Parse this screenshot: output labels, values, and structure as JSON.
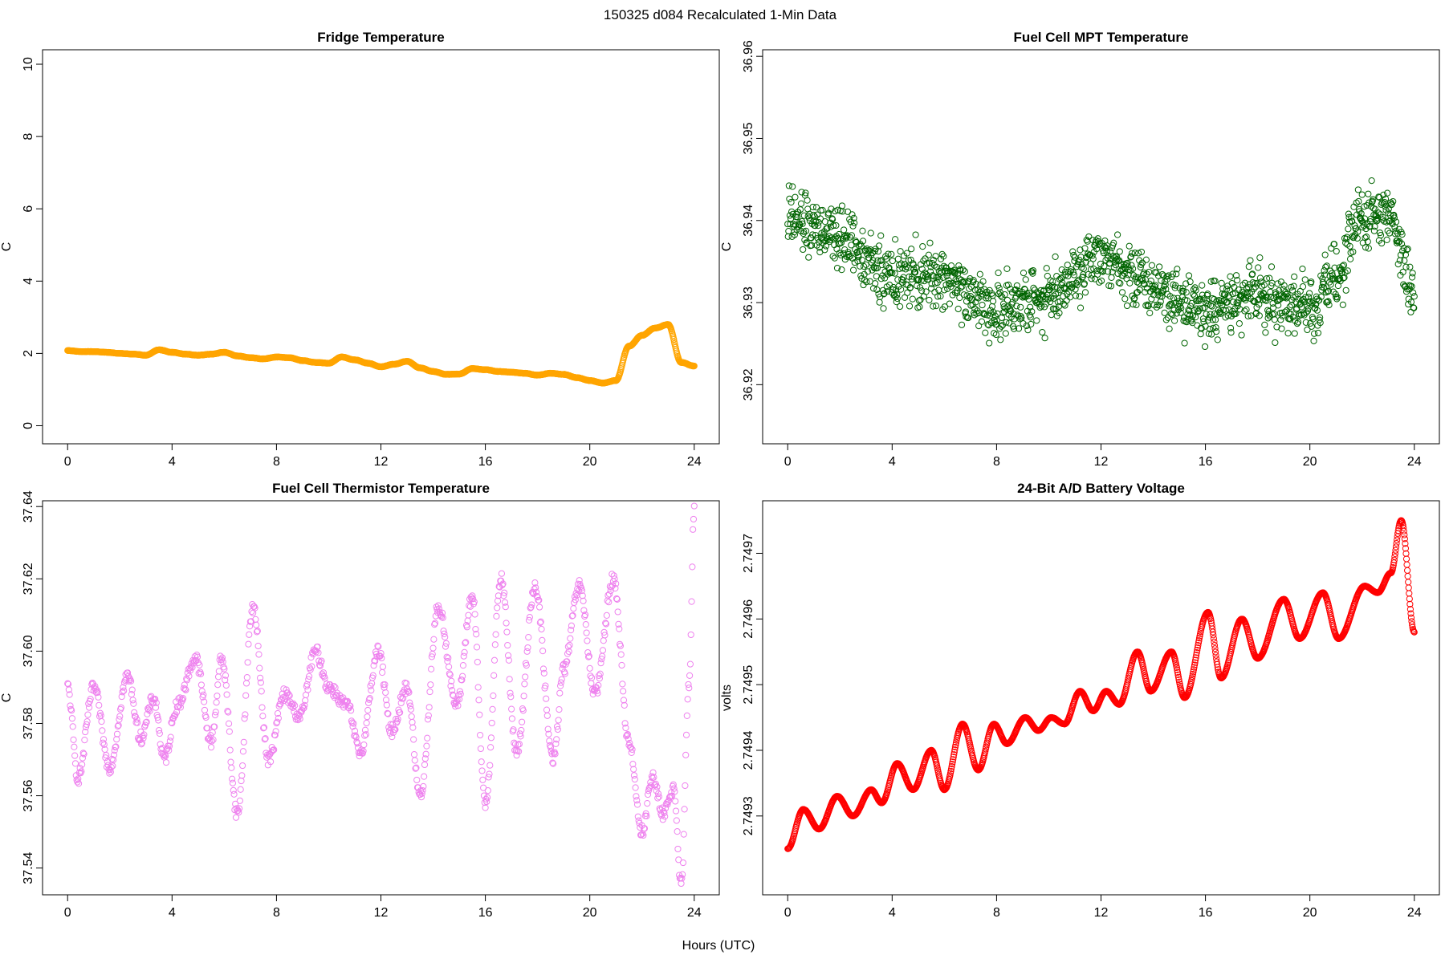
{
  "figure": {
    "suptitle": "150325   d084   Recalculated 1-Min Data",
    "xlabel": "Hours (UTC)"
  },
  "chart_data": [
    {
      "id": "fridge",
      "type": "scatter",
      "title": "Fridge Temperature",
      "ylabel": "C",
      "xlabel": "Hours (UTC)",
      "color": "#ffa500",
      "xlim": [
        -0.96,
        24.96
      ],
      "ylim": [
        -0.5,
        10.4
      ],
      "xticks": [
        0,
        4,
        8,
        12,
        16,
        20,
        24
      ],
      "yticks": [
        0,
        2,
        4,
        6,
        8,
        10
      ],
      "ytick_labels": [
        "0",
        "2",
        "4",
        "6",
        "8",
        "10"
      ],
      "curve": {
        "kind": "keypoints",
        "x": [
          0,
          0.5,
          1,
          1.5,
          2,
          2.5,
          3,
          3.5,
          4,
          4.5,
          5,
          5.5,
          6,
          6.5,
          7,
          7.5,
          8,
          8.5,
          9,
          9.5,
          10,
          10.5,
          11,
          11.5,
          12,
          12.5,
          13,
          13.5,
          14,
          14.5,
          15,
          15.5,
          16,
          16.5,
          17,
          17.5,
          18,
          18.5,
          19,
          19.5,
          20,
          20.5,
          21,
          21.5,
          22,
          22.5,
          23,
          23.5,
          24
        ],
        "y": [
          2.08,
          2.05,
          2.05,
          2.03,
          2.0,
          1.98,
          1.95,
          2.1,
          2.03,
          1.98,
          1.95,
          1.98,
          2.03,
          1.93,
          1.88,
          1.85,
          1.9,
          1.88,
          1.8,
          1.75,
          1.73,
          1.9,
          1.82,
          1.73,
          1.63,
          1.7,
          1.78,
          1.6,
          1.5,
          1.42,
          1.43,
          1.58,
          1.55,
          1.5,
          1.48,
          1.45,
          1.4,
          1.45,
          1.42,
          1.33,
          1.25,
          1.18,
          1.25,
          2.2,
          2.5,
          2.7,
          2.8,
          1.75,
          1.65
        ],
        "spacing_min": 1,
        "noise": 0.005
      }
    },
    {
      "id": "mpt",
      "type": "scatter",
      "title": "Fuel Cell MPT Temperature",
      "ylabel": "C",
      "xlabel": "Hours (UTC)",
      "color": "#006400",
      "xlim": [
        -0.96,
        24.96
      ],
      "ylim": [
        36.9128,
        36.9608
      ],
      "xticks": [
        0,
        4,
        8,
        12,
        16,
        20,
        24
      ],
      "yticks": [
        36.92,
        36.93,
        36.94,
        36.95,
        36.96
      ],
      "ytick_labels": [
        "36.92",
        "36.93",
        "36.94",
        "36.95",
        "36.96"
      ],
      "curve": {
        "kind": "noise",
        "x": [
          0,
          2,
          4,
          6,
          8,
          10,
          12,
          14,
          16,
          18,
          20,
          21,
          22,
          23,
          24
        ],
        "y": [
          36.94,
          36.938,
          36.933,
          36.933,
          36.929,
          36.931,
          36.936,
          36.932,
          36.929,
          36.931,
          36.929,
          36.933,
          36.94,
          36.941,
          36.931
        ],
        "spread": 0.0062,
        "spacing_min": 1,
        "seed": 7
      }
    },
    {
      "id": "thermistor",
      "type": "scatter",
      "title": "Fuel Cell Thermistor Temperature",
      "ylabel": "C",
      "xlabel": "Hours (UTC)",
      "color": "#ee82ee",
      "xlim": [
        -0.96,
        24.96
      ],
      "ylim": [
        37.5326,
        37.6416
      ],
      "xticks": [
        0,
        4,
        8,
        12,
        16,
        20,
        24
      ],
      "yticks": [
        37.54,
        37.56,
        37.58,
        37.6,
        37.62,
        37.64
      ],
      "ytick_labels": [
        "37.54",
        "37.56",
        "37.58",
        "37.60",
        "37.62",
        "37.64"
      ],
      "curve": {
        "kind": "keypoints",
        "x": [
          0,
          0.4,
          1.0,
          1.6,
          2.3,
          2.8,
          3.3,
          3.7,
          4.2,
          4.9,
          5.5,
          5.9,
          6.5,
          7.1,
          7.7,
          8.3,
          8.9,
          9.5,
          10.0,
          10.7,
          11.2,
          11.9,
          12.4,
          13.0,
          13.5,
          14.2,
          14.9,
          15.5,
          16.0,
          16.6,
          17.2,
          17.9,
          18.6,
          19.0,
          19.6,
          20.2,
          20.9,
          21.5,
          22.0,
          22.4,
          22.8,
          23.2,
          23.5,
          23.8,
          24.0
        ],
        "y": [
          37.59,
          37.565,
          37.59,
          37.568,
          37.593,
          37.576,
          37.587,
          37.57,
          37.585,
          37.598,
          37.575,
          37.598,
          37.555,
          37.612,
          37.57,
          37.588,
          37.582,
          37.6,
          37.59,
          37.585,
          37.572,
          37.6,
          37.578,
          37.59,
          37.56,
          37.612,
          37.585,
          37.615,
          37.558,
          37.62,
          37.572,
          37.618,
          37.57,
          37.595,
          37.618,
          37.588,
          37.62,
          37.575,
          37.55,
          37.565,
          37.555,
          37.562,
          37.535,
          37.59,
          37.64
        ],
        "spacing_min": 1.5,
        "noise": 0.0018
      }
    },
    {
      "id": "voltage",
      "type": "scatter",
      "title": "24-Bit A/D Battery Voltage",
      "ylabel": "volts",
      "xlabel": "Hours (UTC)",
      "color": "#ff0000",
      "xlim": [
        -0.96,
        24.96
      ],
      "ylim": [
        2.74918,
        2.74978
      ],
      "xticks": [
        0,
        4,
        8,
        12,
        16,
        20,
        24
      ],
      "yticks": [
        2.7493,
        2.7494,
        2.7495,
        2.7496,
        2.7497
      ],
      "ytick_labels": [
        "2.7493",
        "2.7494",
        "2.7495",
        "2.7496",
        "2.7497"
      ],
      "curve": {
        "kind": "keypoints",
        "x": [
          0,
          0.6,
          1.2,
          1.9,
          2.5,
          3.2,
          3.6,
          4.2,
          4.8,
          5.5,
          6.0,
          6.7,
          7.3,
          7.9,
          8.4,
          9.1,
          9.6,
          10.1,
          10.6,
          11.2,
          11.7,
          12.2,
          12.7,
          13.4,
          13.9,
          14.7,
          15.2,
          16.1,
          16.6,
          17.4,
          18.0,
          19.0,
          19.6,
          20.5,
          21.1,
          22.1,
          22.6,
          23.1,
          23.5,
          24.0
        ],
        "y": [
          2.74925,
          2.74931,
          2.74928,
          2.74933,
          2.7493,
          2.74934,
          2.74932,
          2.74938,
          2.74934,
          2.7494,
          2.74934,
          2.74944,
          2.74937,
          2.74944,
          2.74941,
          2.74945,
          2.74943,
          2.74945,
          2.74944,
          2.74949,
          2.74946,
          2.74949,
          2.74947,
          2.74955,
          2.74949,
          2.74955,
          2.74948,
          2.74961,
          2.74951,
          2.7496,
          2.74954,
          2.74963,
          2.74957,
          2.74964,
          2.74957,
          2.74965,
          2.74964,
          2.74967,
          2.74975,
          2.74958
        ],
        "spacing_min": 1,
        "noise": 2e-07
      }
    }
  ]
}
